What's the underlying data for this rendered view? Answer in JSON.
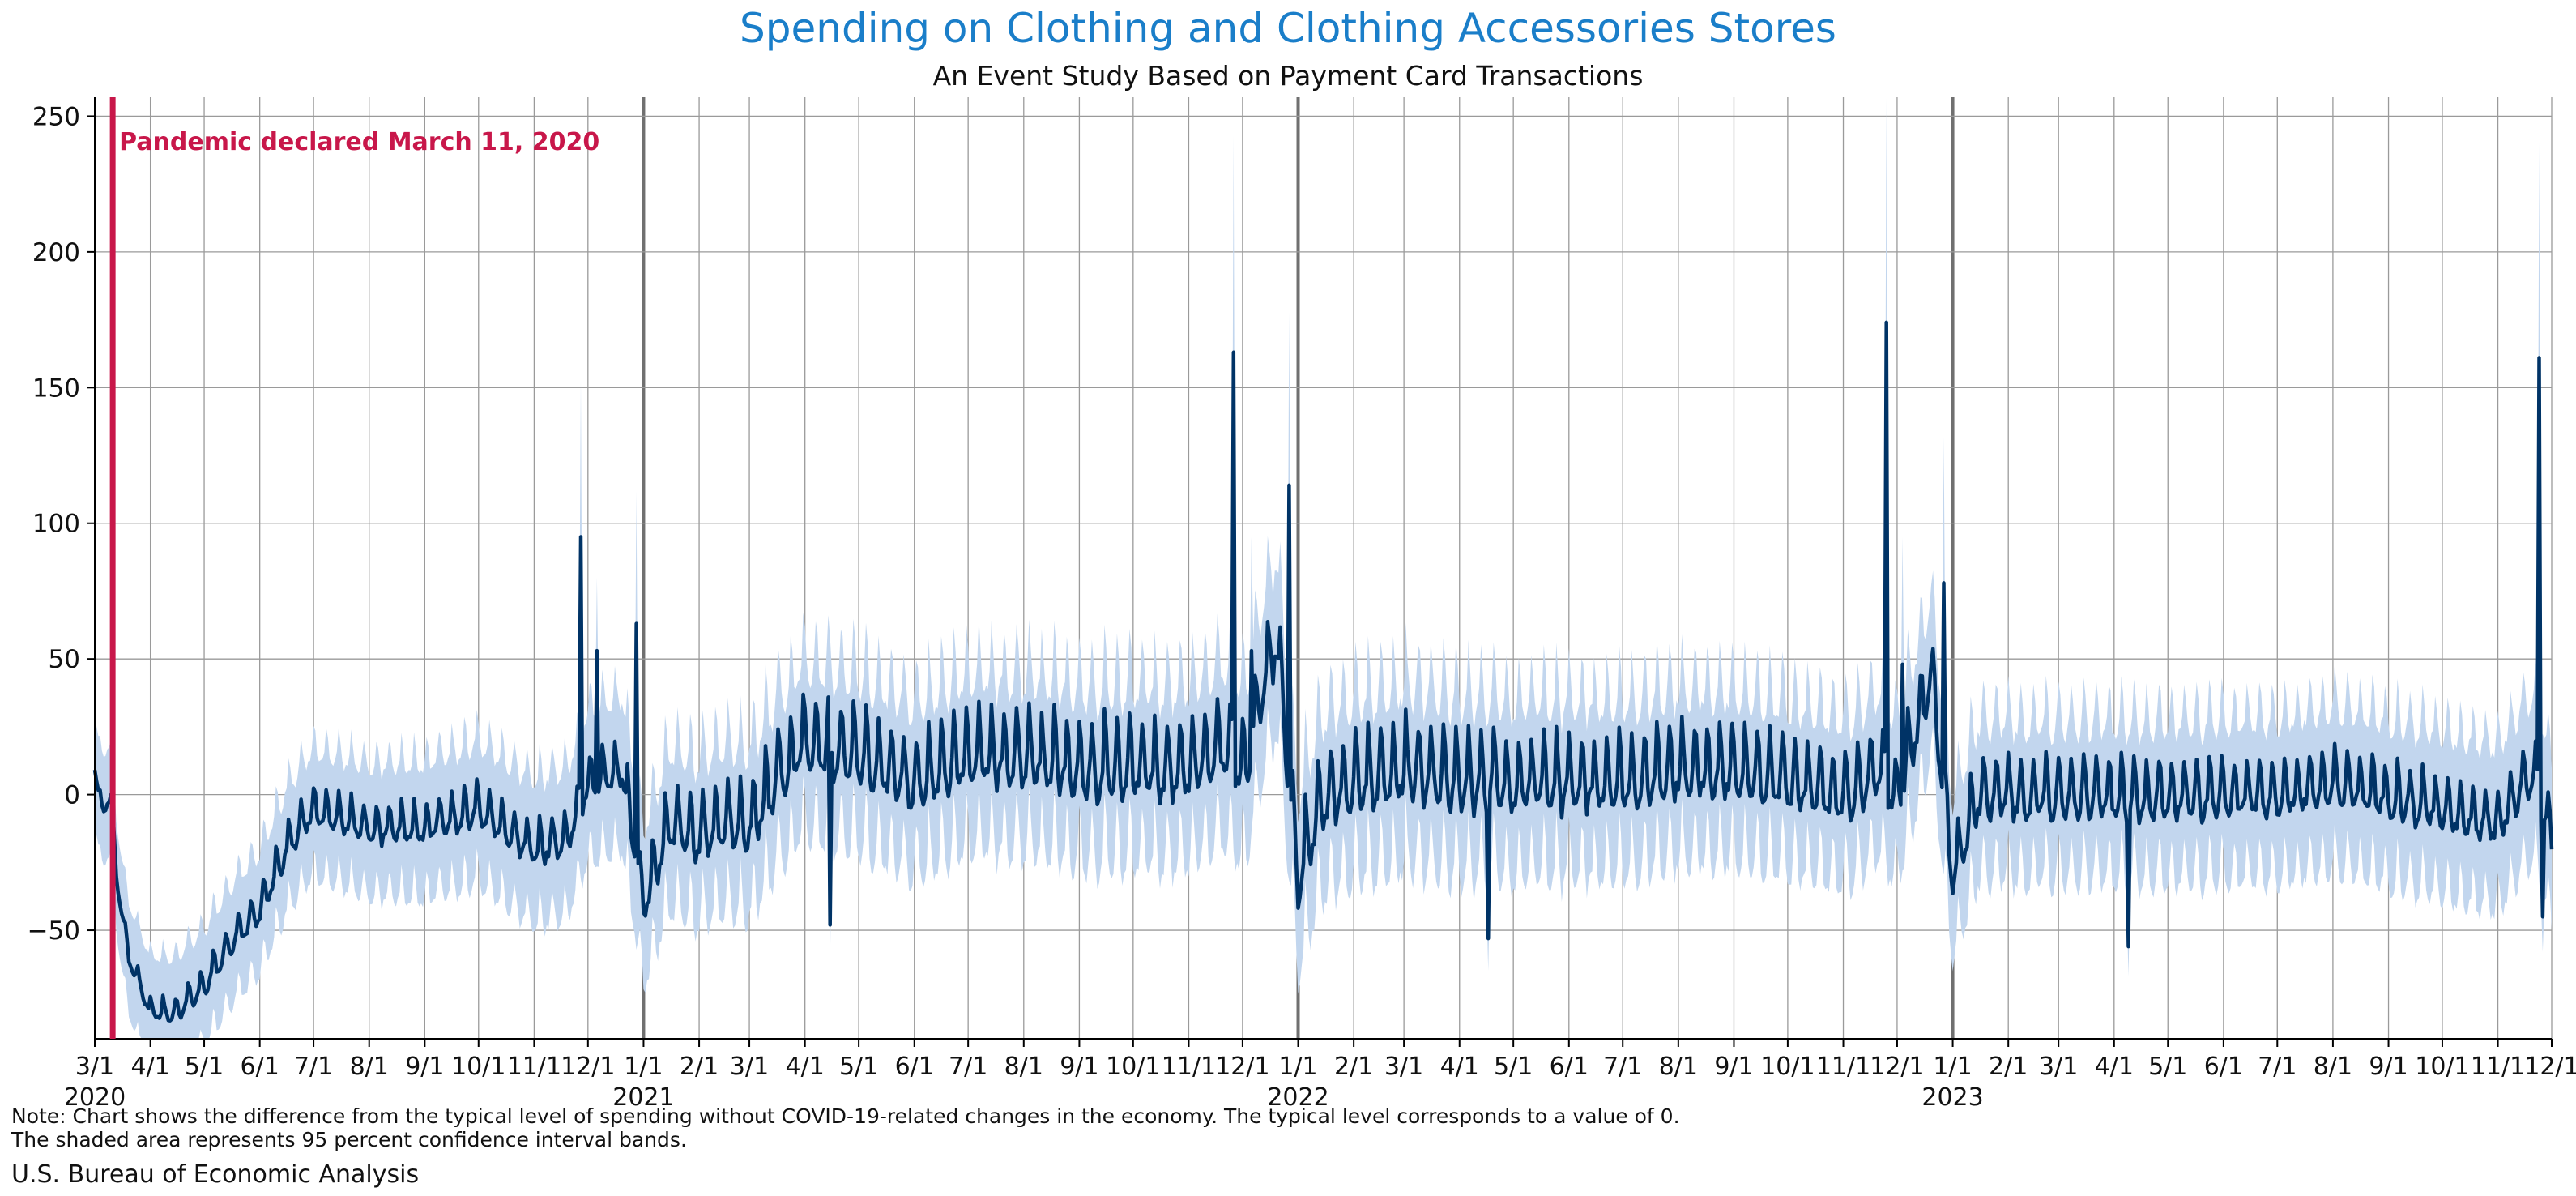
{
  "title": "Spending on Clothing and Clothing Accessories Stores",
  "subtitle": "An Event Study Based on Payment Card Transactions",
  "note_line1": "Note: Chart shows the difference from the typical level of spending without COVID-19-related changes in the economy. The typical level corresponds to a value of 0.",
  "note_line2": "The shaded area represents 95 percent confidence interval bands.",
  "source": "U.S. Bureau of Economic Analysis",
  "colors": {
    "title": "#1a7ec9",
    "line": "#003366",
    "band": "#c2d6ee",
    "event": "#c8174a",
    "grid": "#9a9a9a",
    "year_line": "#707070"
  },
  "chart_data": {
    "type": "line",
    "title": "Spending on Clothing and Clothing Accessories Stores",
    "subtitle": "An Event Study Based on Payment Card Transactions",
    "xlabel": "",
    "ylabel": "",
    "x_range": [
      "2020-03-01",
      "2023-12-01"
    ],
    "ylim": [
      -90,
      257
    ],
    "y_ticks": [
      -50,
      0,
      50,
      100,
      150,
      200,
      250
    ],
    "grid": true,
    "x_ticks": [
      {
        "date": "2020-03-01",
        "label": "3/1",
        "year": "2020"
      },
      {
        "date": "2020-04-01",
        "label": "4/1"
      },
      {
        "date": "2020-05-01",
        "label": "5/1"
      },
      {
        "date": "2020-06-01",
        "label": "6/1"
      },
      {
        "date": "2020-07-01",
        "label": "7/1"
      },
      {
        "date": "2020-08-01",
        "label": "8/1"
      },
      {
        "date": "2020-09-01",
        "label": "9/1"
      },
      {
        "date": "2020-10-01",
        "label": "10/1"
      },
      {
        "date": "2020-11-01",
        "label": "11/1"
      },
      {
        "date": "2020-12-01",
        "label": "12/1"
      },
      {
        "date": "2021-01-01",
        "label": "1/1",
        "year": "2021"
      },
      {
        "date": "2021-02-01",
        "label": "2/1"
      },
      {
        "date": "2021-03-01",
        "label": "3/1"
      },
      {
        "date": "2021-04-01",
        "label": "4/1"
      },
      {
        "date": "2021-05-01",
        "label": "5/1"
      },
      {
        "date": "2021-06-01",
        "label": "6/1"
      },
      {
        "date": "2021-07-01",
        "label": "7/1"
      },
      {
        "date": "2021-08-01",
        "label": "8/1"
      },
      {
        "date": "2021-09-01",
        "label": "9/1"
      },
      {
        "date": "2021-10-01",
        "label": "10/1"
      },
      {
        "date": "2021-11-01",
        "label": "11/1"
      },
      {
        "date": "2021-12-01",
        "label": "12/1"
      },
      {
        "date": "2022-01-01",
        "label": "1/1",
        "year": "2022"
      },
      {
        "date": "2022-02-01",
        "label": "2/1"
      },
      {
        "date": "2022-03-01",
        "label": "3/1"
      },
      {
        "date": "2022-04-01",
        "label": "4/1"
      },
      {
        "date": "2022-05-01",
        "label": "5/1"
      },
      {
        "date": "2022-06-01",
        "label": "6/1"
      },
      {
        "date": "2022-07-01",
        "label": "7/1"
      },
      {
        "date": "2022-08-01",
        "label": "8/1"
      },
      {
        "date": "2022-09-01",
        "label": "9/1"
      },
      {
        "date": "2022-10-01",
        "label": "10/1"
      },
      {
        "date": "2022-11-01",
        "label": "11/1"
      },
      {
        "date": "2022-12-01",
        "label": "12/1"
      },
      {
        "date": "2023-01-01",
        "label": "1/1",
        "year": "2023"
      },
      {
        "date": "2023-02-01",
        "label": "2/1"
      },
      {
        "date": "2023-03-01",
        "label": "3/1"
      },
      {
        "date": "2023-04-01",
        "label": "4/1"
      },
      {
        "date": "2023-05-01",
        "label": "5/1"
      },
      {
        "date": "2023-06-01",
        "label": "6/1"
      },
      {
        "date": "2023-07-01",
        "label": "7/1"
      },
      {
        "date": "2023-08-01",
        "label": "8/1"
      },
      {
        "date": "2023-09-01",
        "label": "9/1"
      },
      {
        "date": "2023-10-01",
        "label": "10/1"
      },
      {
        "date": "2023-11-01",
        "label": "11/1"
      },
      {
        "date": "2023-12-01",
        "label": "12/1"
      }
    ],
    "year_lines": [
      "2021-01-01",
      "2022-01-01",
      "2023-01-01"
    ],
    "event": {
      "date": "2020-03-11",
      "label": "Pandemic declared March 11, 2020"
    },
    "series": [
      {
        "points": [
          [
            "2020-03-01",
            10
          ],
          [
            "2020-03-05",
            -6
          ],
          [
            "2020-03-10",
            0
          ],
          [
            "2020-03-13",
            -30
          ],
          [
            "2020-03-20",
            -60
          ],
          [
            "2020-04-01",
            -80
          ],
          [
            "2020-04-15",
            -80
          ],
          [
            "2020-05-01",
            -70
          ],
          [
            "2020-05-15",
            -55
          ],
          [
            "2020-06-01",
            -42
          ],
          [
            "2020-06-15",
            -20
          ],
          [
            "2020-07-01",
            -5
          ],
          [
            "2020-07-15",
            -8
          ],
          [
            "2020-08-01",
            -12
          ],
          [
            "2020-09-01",
            -12
          ],
          [
            "2020-10-01",
            -5
          ],
          [
            "2020-11-01",
            -20
          ],
          [
            "2020-11-20",
            -15
          ],
          [
            "2020-12-01",
            5
          ],
          [
            "2020-12-20",
            10
          ],
          [
            "2021-01-01",
            -40
          ],
          [
            "2021-01-15",
            -10
          ],
          [
            "2021-02-01",
            -15
          ],
          [
            "2021-02-15",
            -10
          ],
          [
            "2021-03-01",
            -10
          ],
          [
            "2021-03-15",
            5
          ],
          [
            "2021-04-01",
            20
          ],
          [
            "2021-05-01",
            15
          ],
          [
            "2021-06-01",
            5
          ],
          [
            "2021-07-01",
            15
          ],
          [
            "2021-08-01",
            15
          ],
          [
            "2021-09-01",
            10
          ],
          [
            "2021-10-01",
            10
          ],
          [
            "2021-11-01",
            10
          ],
          [
            "2021-11-20",
            20
          ],
          [
            "2021-12-01",
            10
          ],
          [
            "2021-12-20",
            60
          ],
          [
            "2022-01-01",
            -30
          ],
          [
            "2022-01-15",
            0
          ],
          [
            "2022-02-01",
            5
          ],
          [
            "2022-03-01",
            10
          ],
          [
            "2022-04-01",
            5
          ],
          [
            "2022-05-01",
            5
          ],
          [
            "2022-06-01",
            5
          ],
          [
            "2022-07-01",
            5
          ],
          [
            "2022-08-01",
            10
          ],
          [
            "2022-09-01",
            10
          ],
          [
            "2022-10-01",
            5
          ],
          [
            "2022-11-01",
            0
          ],
          [
            "2022-11-20",
            10
          ],
          [
            "2022-12-01",
            0
          ],
          [
            "2022-12-20",
            45
          ],
          [
            "2023-01-01",
            -30
          ],
          [
            "2023-01-15",
            0
          ],
          [
            "2023-02-01",
            0
          ],
          [
            "2023-03-01",
            0
          ],
          [
            "2023-04-01",
            0
          ],
          [
            "2023-05-01",
            0
          ],
          [
            "2023-06-01",
            0
          ],
          [
            "2023-07-01",
            0
          ],
          [
            "2023-08-01",
            5
          ],
          [
            "2023-09-01",
            0
          ],
          [
            "2023-10-01",
            -5
          ],
          [
            "2023-11-01",
            -10
          ],
          [
            "2023-11-20",
            10
          ],
          [
            "2023-12-01",
            -15
          ]
        ],
        "weekly_swing": [
          [
            "2020-03-01",
            3
          ],
          [
            "2020-06-01",
            8
          ],
          [
            "2020-12-01",
            10
          ],
          [
            "2021-03-01",
            16
          ],
          [
            "2021-09-01",
            18
          ],
          [
            "2022-03-01",
            18
          ],
          [
            "2022-09-01",
            16
          ],
          [
            "2023-03-01",
            14
          ],
          [
            "2023-12-01",
            12
          ]
        ],
        "ci_halfwidth": [
          [
            "2020-03-01",
            20
          ],
          [
            "2020-06-01",
            22
          ],
          [
            "2021-03-01",
            30
          ],
          [
            "2022-03-01",
            32
          ],
          [
            "2023-03-01",
            28
          ],
          [
            "2023-12-01",
            30
          ]
        ],
        "spikes": [
          [
            "2020-11-27",
            95,
            153
          ],
          [
            "2020-12-06",
            53,
            80
          ],
          [
            "2020-12-28",
            63,
            112
          ],
          [
            "2021-04-15",
            -48,
            -62
          ],
          [
            "2021-11-26",
            163,
            243
          ],
          [
            "2021-12-06",
            53,
            95
          ],
          [
            "2021-12-27",
            114,
            178
          ],
          [
            "2022-04-17",
            -53,
            -65
          ],
          [
            "2022-11-25",
            174,
            257
          ],
          [
            "2022-12-04",
            48,
            95
          ],
          [
            "2022-12-27",
            78,
            132
          ],
          [
            "2023-04-09",
            -56,
            -67
          ],
          [
            "2023-11-24",
            161,
            241
          ],
          [
            "2023-11-26",
            -45,
            -58
          ]
        ]
      }
    ]
  }
}
